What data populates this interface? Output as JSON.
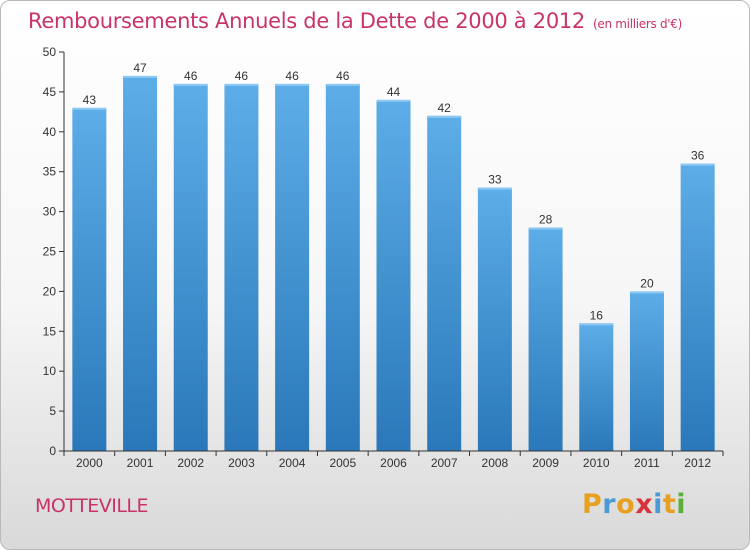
{
  "header": {
    "title": "Remboursements Annuels de la Dette de 2000 à 2012",
    "subtitle": "(en milliers d'€)"
  },
  "footer": {
    "city": "MOTTEVILLE",
    "logo": {
      "letters": [
        "P",
        "r",
        "o",
        "x",
        "i",
        "t",
        "i"
      ],
      "colors": [
        "#e8a020",
        "#4a9ad6",
        "#e8a020",
        "#d8333b",
        "#4a9ad6",
        "#e8a020",
        "#5ab038"
      ]
    }
  },
  "colors": {
    "bar_top": "#5dade8",
    "bar_bottom": "#2a78b9",
    "title": "#c8336a"
  },
  "chart_data": {
    "type": "bar",
    "title": "Remboursements Annuels de la Dette de 2000 à 2012",
    "subtitle": "(en milliers d'€)",
    "categories": [
      "2000",
      "2001",
      "2002",
      "2003",
      "2004",
      "2005",
      "2006",
      "2007",
      "2008",
      "2009",
      "2010",
      "2011",
      "2012"
    ],
    "values": [
      43,
      47,
      46,
      46,
      46,
      46,
      44,
      42,
      33,
      28,
      16,
      20,
      36
    ],
    "ylim": [
      0,
      50
    ],
    "yticks": [
      0,
      5,
      10,
      15,
      20,
      25,
      30,
      35,
      40,
      45,
      50
    ],
    "grid": false,
    "legend": "none"
  }
}
